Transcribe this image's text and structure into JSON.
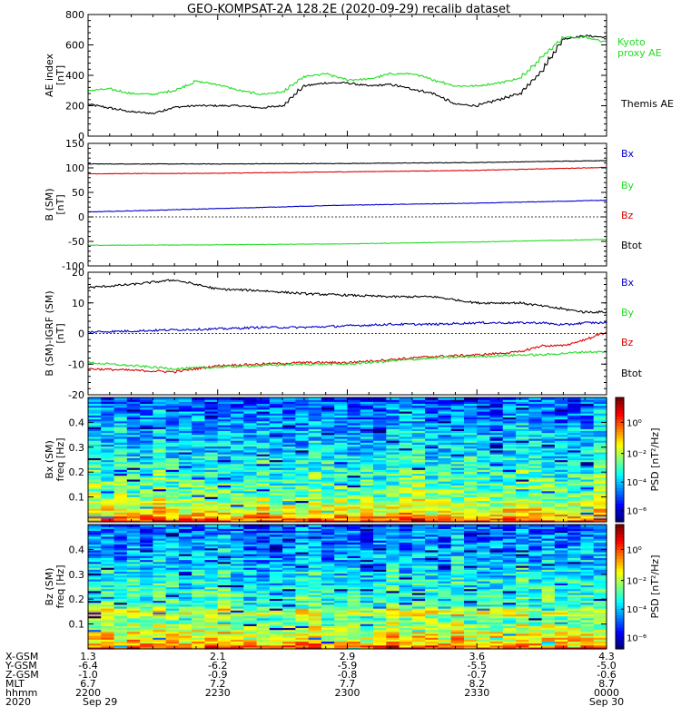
{
  "title": "GEO-KOMPSAT-2A 128.2E (2020-09-29) recalib dataset",
  "colors": {
    "black": "#000000",
    "green": "#22dd22",
    "red": "#dd0000",
    "blue": "#0000cc"
  },
  "chart_data": [
    {
      "type": "line",
      "ylabel": "AE index\n[nT]",
      "ylim": [
        0,
        800
      ],
      "yticks": [
        0,
        200,
        400,
        600,
        800
      ],
      "series": [
        {
          "name": "Kyoto\nproxy AE",
          "color": "#22dd22",
          "x": [
            2200,
            2205,
            2210,
            2215,
            2220,
            2225,
            2230,
            2235,
            2240,
            2245,
            2250,
            2255,
            2300,
            2305,
            2310,
            2315,
            2320,
            2325,
            2330,
            2335,
            2340,
            2345,
            2350,
            2355,
            2400
          ],
          "values": [
            300,
            310,
            280,
            275,
            300,
            360,
            340,
            300,
            275,
            290,
            390,
            410,
            370,
            375,
            410,
            410,
            370,
            330,
            330,
            350,
            380,
            520,
            650,
            650,
            620
          ]
        },
        {
          "name": "Themis AE",
          "color": "#000000",
          "x": [
            2200,
            2205,
            2210,
            2215,
            2220,
            2225,
            2230,
            2235,
            2240,
            2245,
            2250,
            2255,
            2300,
            2305,
            2310,
            2315,
            2320,
            2325,
            2330,
            2335,
            2340,
            2345,
            2350,
            2355,
            2400
          ],
          "values": [
            210,
            185,
            160,
            150,
            190,
            200,
            200,
            200,
            185,
            200,
            330,
            350,
            350,
            330,
            340,
            310,
            280,
            210,
            200,
            240,
            280,
            430,
            640,
            660,
            650
          ]
        }
      ]
    },
    {
      "type": "line",
      "ylabel": "B (SM)\n[nT]",
      "ylim": [
        -100,
        150
      ],
      "yticks": [
        -100,
        -50,
        0,
        50,
        100,
        150
      ],
      "series": [
        {
          "name": "Bx",
          "color": "#0000cc",
          "x": [
            2200,
            2230,
            2300,
            2330,
            2400
          ],
          "values": [
            10,
            17,
            24,
            28,
            34
          ]
        },
        {
          "name": "By",
          "color": "#22dd22",
          "x": [
            2200,
            2230,
            2300,
            2330,
            2400
          ],
          "values": [
            -58,
            -57,
            -55,
            -51,
            -46
          ]
        },
        {
          "name": "Bz",
          "color": "#dd0000",
          "x": [
            2200,
            2230,
            2300,
            2330,
            2400
          ],
          "values": [
            88,
            89,
            92,
            95,
            101
          ]
        },
        {
          "name": "Btot",
          "color": "#000000",
          "x": [
            2200,
            2230,
            2300,
            2330,
            2400
          ],
          "values": [
            108,
            108,
            109,
            111,
            115
          ]
        }
      ]
    },
    {
      "type": "line",
      "ylabel": "B (SM)-IGRF (SM)\n[nT]",
      "ylim": [
        -20,
        20
      ],
      "yticks": [
        -20,
        -10,
        0,
        10,
        20
      ],
      "series": [
        {
          "name": "Bx",
          "color": "#0000cc",
          "x": [
            2200,
            2210,
            2220,
            2230,
            2240,
            2250,
            2300,
            2310,
            2320,
            2330,
            2340,
            2345,
            2350,
            2355,
            2400
          ],
          "values": [
            0.5,
            0.8,
            1.2,
            1.5,
            2.0,
            2.0,
            2.5,
            3.0,
            3.0,
            3.5,
            3.5,
            3.5,
            2.8,
            3.5,
            3.5
          ]
        },
        {
          "name": "By",
          "color": "#22dd22",
          "x": [
            2200,
            2210,
            2220,
            2230,
            2240,
            2250,
            2300,
            2310,
            2320,
            2330,
            2340,
            2345,
            2350,
            2355,
            2400
          ],
          "values": [
            -9.5,
            -10.5,
            -11.5,
            -11,
            -10.5,
            -10,
            -10,
            -9,
            -8,
            -7.5,
            -7,
            -7,
            -6.5,
            -6,
            -6
          ]
        },
        {
          "name": "Bz",
          "color": "#dd0000",
          "x": [
            2200,
            2210,
            2220,
            2230,
            2240,
            2250,
            2300,
            2310,
            2320,
            2330,
            2340,
            2345,
            2350,
            2355,
            2400
          ],
          "values": [
            -11.5,
            -12,
            -12.5,
            -10.5,
            -10,
            -9.5,
            -9.5,
            -8.5,
            -7.5,
            -7,
            -6,
            -4,
            -4,
            -2,
            0.5
          ]
        },
        {
          "name": "Btot",
          "color": "#000000",
          "x": [
            2200,
            2210,
            2220,
            2230,
            2240,
            2250,
            2300,
            2310,
            2320,
            2330,
            2340,
            2345,
            2350,
            2355,
            2400
          ],
          "values": [
            15,
            16,
            17.5,
            14.5,
            14,
            13,
            12.5,
            12,
            12,
            10,
            10,
            9,
            8,
            7,
            7
          ]
        }
      ]
    },
    {
      "type": "heatmap",
      "ylabel": "Bx (SM)\nfreq [Hz]",
      "ylim": [
        0,
        0.5
      ],
      "yticks": [
        0.1,
        0.2,
        0.3,
        0.4
      ],
      "colorbar_label": "PSD [nT²/Hz]",
      "colorbar_ticks": [
        "10⁰",
        "10⁻²",
        "10⁻⁴",
        "10⁻⁶"
      ]
    },
    {
      "type": "heatmap",
      "ylabel": "Bz (SM)\nfreq [Hz]",
      "ylim": [
        0,
        0.5
      ],
      "yticks": [
        0.1,
        0.2,
        0.3,
        0.4
      ],
      "colorbar_label": "PSD [nT²/Hz]",
      "colorbar_ticks": [
        "10⁰",
        "10⁻²",
        "10⁻⁴",
        "10⁻⁶"
      ]
    }
  ],
  "ephemeris": {
    "row_labels": [
      "X-GSM",
      "Y-GSM",
      "Z-GSM",
      "MLT",
      "hhmm",
      "2020"
    ],
    "columns": [
      [
        "1.3",
        "-6.4",
        "-1.0",
        "6.7",
        "2200",
        "Sep 29"
      ],
      [
        "2.1",
        "-6.2",
        "-0.9",
        "7.2",
        "2230",
        ""
      ],
      [
        "2.9",
        "-5.9",
        "-0.8",
        "7.7",
        "2300",
        ""
      ],
      [
        "3.6",
        "-5.5",
        "-0.7",
        "8.2",
        "2330",
        ""
      ],
      [
        "4.3",
        "-5.0",
        "-0.6",
        "8.7",
        "0000",
        "Sep 30"
      ]
    ]
  }
}
